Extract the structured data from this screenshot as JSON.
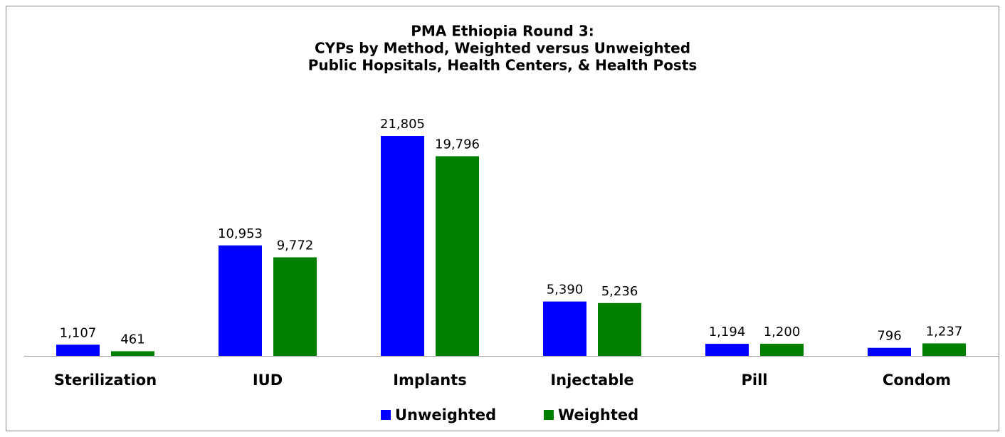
{
  "chart_data": {
    "type": "bar",
    "title": [
      "PMA Ethiopia Round 3:",
      "CYPs by Method, Weighted versus Unweighted",
      "Public Hopsitals, Health Centers, & Health Posts"
    ],
    "categories": [
      "Sterilization",
      "IUD",
      "Implants",
      "Injectable",
      "Pill",
      "Condom"
    ],
    "series": [
      {
        "name": "Unweighted",
        "color": "#0000ff",
        "values": [
          1107,
          10953,
          21805,
          5390,
          1194,
          796
        ],
        "value_labels": [
          "1,107",
          "10,953",
          "21,805",
          "5,390",
          "1,194",
          "796"
        ]
      },
      {
        "name": "Weighted",
        "color": "#008000",
        "values": [
          461,
          9772,
          19796,
          5236,
          1200,
          1237
        ],
        "value_labels": [
          "461",
          "9,772",
          "19,796",
          "5,236",
          "1,200",
          "1,237"
        ]
      }
    ],
    "legend": "bottom"
  }
}
